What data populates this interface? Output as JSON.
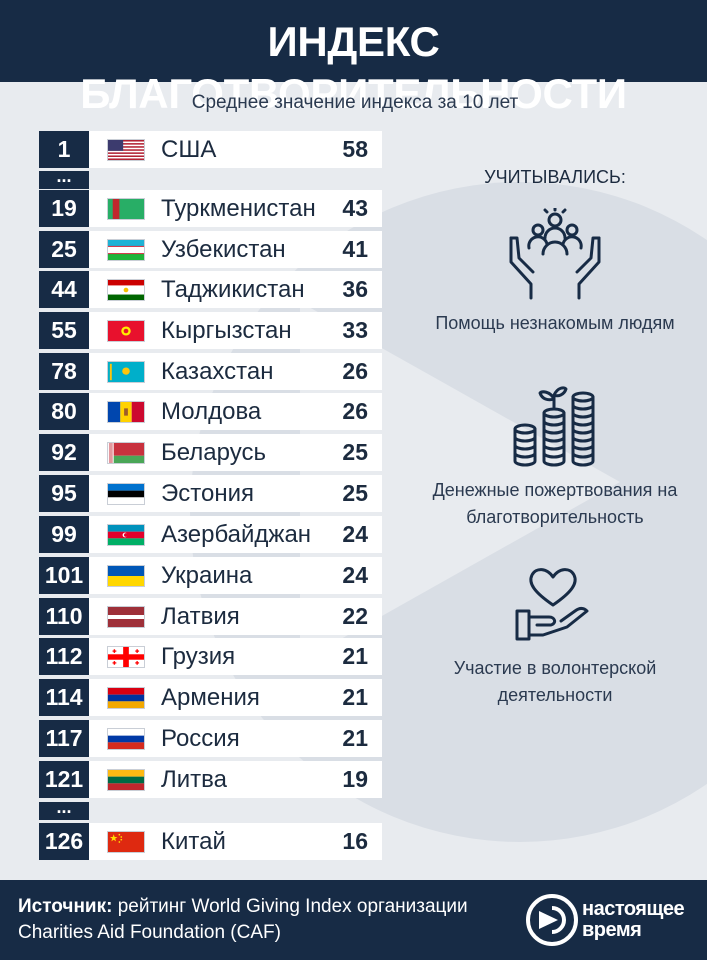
{
  "header": {
    "title": "ИНДЕКС БЛАГОТВОРИТЕЛЬНОСТИ"
  },
  "subtitle": "Среднее значение индекса за 10 лет",
  "ellipsis": "...",
  "chart_data": {
    "type": "table",
    "title": "ИНДЕКС БЛАГОТВОРИТЕЛЬНОСТИ",
    "subtitle": "Среднее значение индекса за 10 лет",
    "columns": [
      "rank",
      "country",
      "value"
    ],
    "rows": [
      {
        "rank": "1",
        "country": "США",
        "value": "58",
        "flag": "usa"
      },
      {
        "rank": "19",
        "country": "Туркменистан",
        "value": "43",
        "flag": "turkmenistan"
      },
      {
        "rank": "25",
        "country": "Узбекистан",
        "value": "41",
        "flag": "uzbekistan"
      },
      {
        "rank": "44",
        "country": "Таджикистан",
        "value": "36",
        "flag": "tajikistan"
      },
      {
        "rank": "55",
        "country": "Кыргызстан",
        "value": "33",
        "flag": "kyrgyzstan"
      },
      {
        "rank": "78",
        "country": "Казахстан",
        "value": "26",
        "flag": "kazakhstan"
      },
      {
        "rank": "80",
        "country": "Молдова",
        "value": "26",
        "flag": "moldova"
      },
      {
        "rank": "92",
        "country": "Беларусь",
        "value": "25",
        "flag": "belarus"
      },
      {
        "rank": "95",
        "country": "Эстония",
        "value": "25",
        "flag": "estonia"
      },
      {
        "rank": "99",
        "country": "Азербайджан",
        "value": "24",
        "flag": "azerbaijan"
      },
      {
        "rank": "101",
        "country": "Украина",
        "value": "24",
        "flag": "ukraine"
      },
      {
        "rank": "110",
        "country": "Латвия",
        "value": "22",
        "flag": "latvia"
      },
      {
        "rank": "112",
        "country": "Грузия",
        "value": "21",
        "flag": "georgia"
      },
      {
        "rank": "114",
        "country": "Армения",
        "value": "21",
        "flag": "armenia"
      },
      {
        "rank": "117",
        "country": "Россия",
        "value": "21",
        "flag": "russia"
      },
      {
        "rank": "121",
        "country": "Литва",
        "value": "19",
        "flag": "lithuania"
      },
      {
        "rank": "126",
        "country": "Китай",
        "value": "16",
        "flag": "china"
      }
    ]
  },
  "criteria": {
    "title": "УЧИТЫВАЛИСЬ:",
    "items": [
      {
        "icon": "people-in-hands-icon",
        "label": "Помощь незнакомым людям"
      },
      {
        "icon": "coins-with-sprout-icon",
        "label": "Денежные пожертвования на благотворительность"
      },
      {
        "icon": "heart-in-hand-icon",
        "label": "Участие в волонтерской деятельности"
      }
    ]
  },
  "footer": {
    "source_label": "Источник:",
    "source_text": " рейтинг World Giving Index организации Charities Aid Foundation (CAF)",
    "logo_line1": "настоящее",
    "logo_line2": "время"
  },
  "colors": {
    "navy": "#172b45",
    "background": "#e8ebef",
    "row": "#ffffff"
  }
}
